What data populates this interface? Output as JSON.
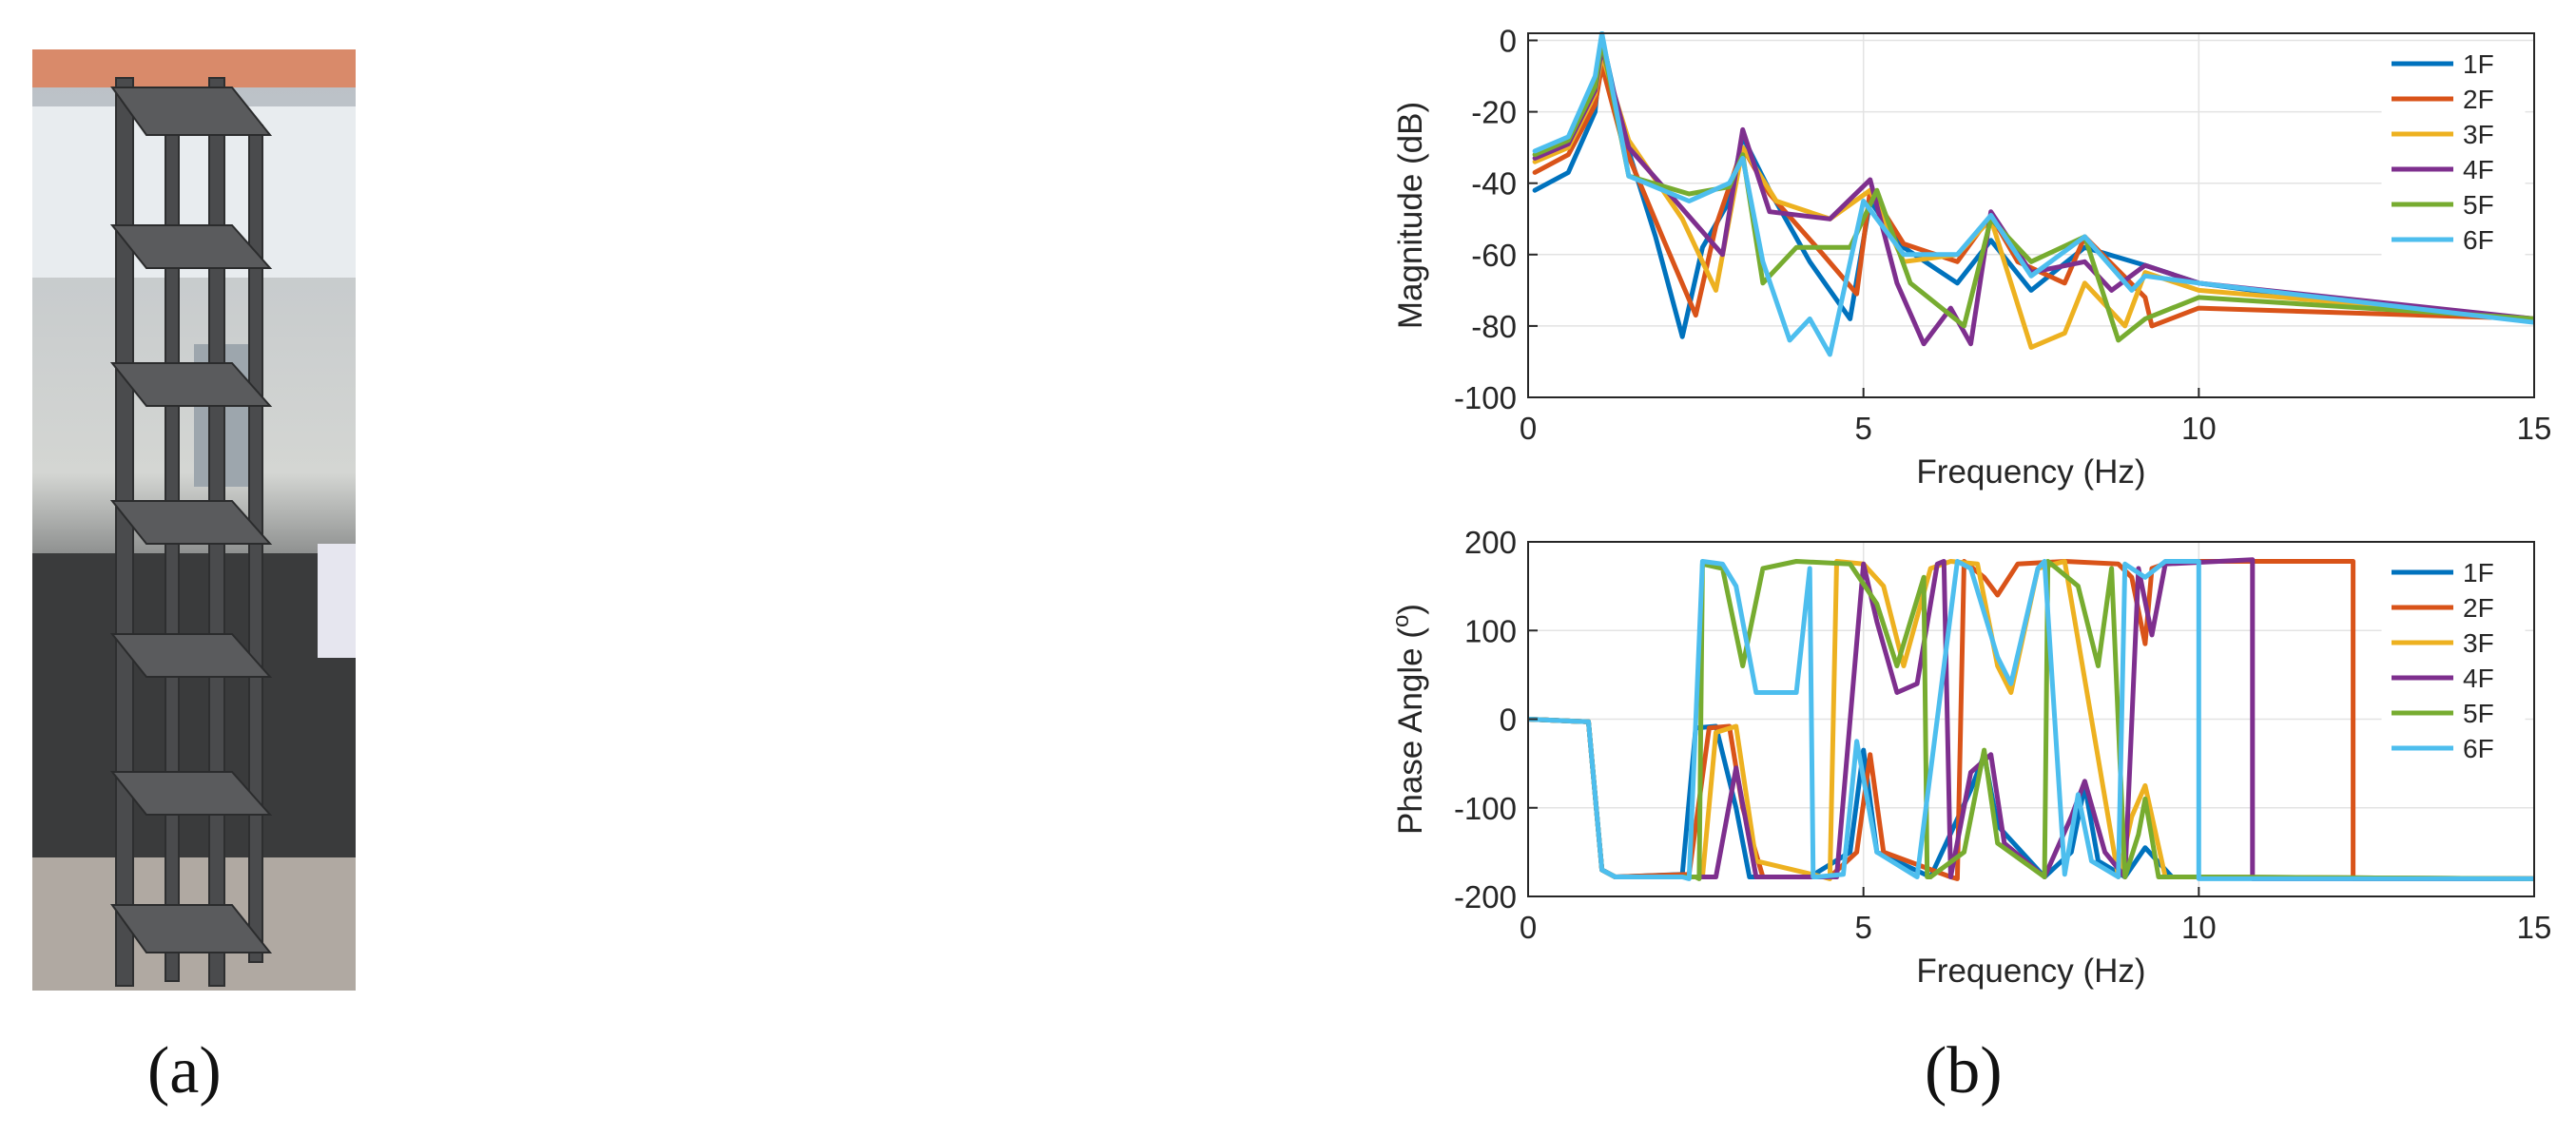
{
  "captions": {
    "a": "(a)",
    "b": "(b)"
  },
  "photo": {
    "subject": "multi-storey steel frame test structure",
    "storeys": 6
  },
  "colors": {
    "1F": "#0072BD",
    "2F": "#D95319",
    "3F": "#EDB120",
    "4F": "#7E2F8E",
    "5F": "#77AC30",
    "6F": "#4DBEEE"
  },
  "chart_data": [
    {
      "type": "line",
      "xlabel": "Frequency (Hz)",
      "ylabel": "Magnitude (dB)",
      "xlim": [
        0,
        15
      ],
      "ylim": [
        -100,
        2
      ],
      "xticks": [
        "0",
        "5",
        "10",
        "15"
      ],
      "yticks": [
        "0",
        "-20",
        "-40",
        "-60",
        "-80",
        "-100"
      ],
      "grid": true,
      "legend": "top-right",
      "series": [
        {
          "name": "1F",
          "x": [
            0.1,
            0.6,
            1.0,
            1.1,
            1.4,
            1.9,
            2.3,
            2.6,
            3.0,
            3.2,
            3.6,
            4.2,
            4.8,
            5.1,
            5.6,
            6.4,
            6.9,
            7.5,
            8.3,
            9.2,
            10.0,
            12.0,
            15.0
          ],
          "y": [
            -42,
            -37,
            -20,
            1,
            -25,
            -55,
            -83,
            -58,
            -45,
            -27,
            -42,
            -62,
            -78,
            -45,
            -58,
            -68,
            -56,
            -70,
            -58,
            -63,
            -68,
            -73,
            -78
          ]
        },
        {
          "name": "2F",
          "x": [
            0.1,
            0.6,
            1.0,
            1.1,
            1.4,
            2.0,
            2.5,
            2.8,
            3.2,
            3.6,
            4.4,
            4.9,
            5.1,
            5.6,
            6.4,
            6.9,
            7.3,
            8.0,
            8.3,
            9.2,
            9.3,
            10.0,
            15.0
          ],
          "y": [
            -37,
            -32,
            -18,
            -7,
            -28,
            -55,
            -77,
            -52,
            -30,
            -43,
            -60,
            -71,
            -42,
            -57,
            -62,
            -49,
            -62,
            -68,
            -55,
            -72,
            -80,
            -75,
            -78
          ]
        },
        {
          "name": "3F",
          "x": [
            0.1,
            0.6,
            1.0,
            1.1,
            1.5,
            2.3,
            2.8,
            3.2,
            3.7,
            4.5,
            5.1,
            5.6,
            6.4,
            6.9,
            7.5,
            8.0,
            8.3,
            8.9,
            9.2,
            10.0,
            15.0
          ],
          "y": [
            -34,
            -30,
            -15,
            -4,
            -28,
            -50,
            -70,
            -30,
            -45,
            -50,
            -42,
            -62,
            -60,
            -50,
            -86,
            -82,
            -68,
            -80,
            -65,
            -70,
            -78
          ]
        },
        {
          "name": "4F",
          "x": [
            0.1,
            0.6,
            1.0,
            1.1,
            1.5,
            2.2,
            2.9,
            3.2,
            3.6,
            4.5,
            5.1,
            5.5,
            5.9,
            6.3,
            6.6,
            6.9,
            7.5,
            8.3,
            8.7,
            9.2,
            10.0,
            15.0
          ],
          "y": [
            -33,
            -29,
            -14,
            -2,
            -30,
            -45,
            -60,
            -25,
            -48,
            -50,
            -39,
            -68,
            -85,
            -75,
            -85,
            -48,
            -65,
            -62,
            -70,
            -63,
            -68,
            -78
          ]
        },
        {
          "name": "5F",
          "x": [
            0.1,
            0.6,
            1.0,
            1.1,
            1.5,
            2.4,
            3.0,
            3.2,
            3.5,
            4.0,
            4.8,
            5.2,
            5.7,
            6.5,
            6.9,
            7.5,
            8.3,
            8.8,
            9.2,
            10.0,
            15.0
          ],
          "y": [
            -32,
            -28,
            -13,
            0,
            -38,
            -43,
            -41,
            -32,
            -68,
            -58,
            -58,
            -42,
            -68,
            -80,
            -50,
            -62,
            -55,
            -84,
            -78,
            -72,
            -78
          ]
        },
        {
          "name": "6F",
          "x": [
            0.1,
            0.6,
            1.0,
            1.1,
            1.5,
            2.4,
            3.0,
            3.2,
            3.5,
            3.9,
            4.2,
            4.5,
            5.0,
            5.6,
            6.4,
            6.9,
            7.5,
            8.3,
            9.0,
            9.2,
            10.0,
            15.0
          ],
          "y": [
            -31,
            -27,
            -10,
            2,
            -38,
            -45,
            -40,
            -33,
            -62,
            -84,
            -78,
            -88,
            -45,
            -60,
            -60,
            -49,
            -66,
            -55,
            -70,
            -66,
            -68,
            -79
          ]
        }
      ]
    },
    {
      "type": "line",
      "xlabel": "Frequency (Hz)",
      "ylabel": "Phase Angle (°)",
      "ylabel_text": "Phase Angle (",
      "ylabel_sup": "o",
      "ylabel_close": ")",
      "xlim": [
        0,
        15
      ],
      "ylim": [
        -200,
        200
      ],
      "xticks": [
        "0",
        "5",
        "10",
        "15"
      ],
      "yticks": [
        "200",
        "100",
        "0",
        "-100",
        "-200"
      ],
      "grid": true,
      "legend": "top-right",
      "series": [
        {
          "name": "1F",
          "x": [
            0,
            0.9,
            1.1,
            1.3,
            2.3,
            2.5,
            2.8,
            3.1,
            3.3,
            4.2,
            4.8,
            5.0,
            5.2,
            6.0,
            6.6,
            6.8,
            7.0,
            7.7,
            8.1,
            8.3,
            8.5,
            8.9,
            9.2,
            9.6,
            10.0,
            15.0
          ],
          "y": [
            0,
            -3,
            -170,
            -178,
            -175,
            -10,
            -8,
            -100,
            -178,
            -178,
            -150,
            -35,
            -150,
            -178,
            -80,
            -40,
            -120,
            -178,
            -150,
            -75,
            -160,
            -178,
            -145,
            -178,
            -178,
            -180
          ]
        },
        {
          "name": "2F",
          "x": [
            0,
            0.9,
            1.1,
            1.3,
            2.4,
            2.7,
            3.0,
            3.2,
            3.5,
            4.5,
            4.9,
            5.1,
            5.3,
            6.3,
            6.4,
            6.5,
            6.8,
            7.0,
            7.3,
            8.0,
            8.8,
            9.0,
            9.2,
            9.3,
            9.6,
            12.3,
            12.3,
            15.0
          ],
          "y": [
            0,
            -3,
            -170,
            -178,
            -175,
            -10,
            -8,
            -100,
            -178,
            -178,
            -150,
            -40,
            -150,
            -178,
            -180,
            178,
            160,
            140,
            175,
            178,
            175,
            160,
            85,
            170,
            178,
            178,
            -180,
            -180
          ]
        },
        {
          "name": "3F",
          "x": [
            0,
            0.9,
            1.1,
            1.3,
            2.6,
            2.8,
            3.1,
            3.4,
            4.4,
            4.5,
            4.6,
            5.0,
            5.3,
            5.6,
            6.0,
            6.3,
            6.7,
            7.0,
            7.2,
            7.6,
            8.0,
            8.8,
            9.0,
            9.2,
            9.5,
            10.0,
            15.0
          ],
          "y": [
            0,
            -3,
            -170,
            -178,
            -178,
            -15,
            -8,
            -160,
            -178,
            -180,
            178,
            175,
            150,
            60,
            170,
            178,
            175,
            60,
            30,
            170,
            178,
            -178,
            -110,
            -75,
            -178,
            -178,
            -180
          ]
        },
        {
          "name": "4F",
          "x": [
            0,
            0.9,
            1.1,
            1.3,
            2.8,
            3.1,
            3.4,
            4.6,
            5.0,
            5.2,
            5.5,
            5.8,
            6.1,
            6.2,
            6.3,
            6.6,
            6.9,
            7.1,
            7.7,
            8.1,
            8.3,
            8.6,
            8.9,
            9.1,
            9.3,
            9.5,
            10.8,
            10.8,
            15.0
          ],
          "y": [
            0,
            -3,
            -170,
            -178,
            -178,
            -55,
            -178,
            -178,
            175,
            110,
            30,
            40,
            175,
            178,
            -178,
            -60,
            -40,
            -140,
            -178,
            -110,
            -70,
            -150,
            -178,
            170,
            95,
            175,
            180,
            -180,
            -180
          ]
        },
        {
          "name": "5F",
          "x": [
            0,
            0.9,
            1.1,
            1.3,
            2.5,
            2.55,
            2.6,
            2.9,
            3.2,
            3.5,
            4.0,
            4.8,
            5.2,
            5.5,
            5.9,
            5.95,
            6.0,
            6.5,
            6.8,
            7.0,
            7.7,
            7.75,
            7.8,
            8.2,
            8.5,
            8.7,
            8.9,
            9.1,
            9.2,
            9.4,
            10.0,
            15.0
          ],
          "y": [
            0,
            -3,
            -170,
            -178,
            -178,
            -180,
            175,
            170,
            60,
            170,
            178,
            175,
            130,
            60,
            160,
            -178,
            -178,
            -150,
            -35,
            -140,
            -178,
            178,
            175,
            150,
            60,
            170,
            -178,
            -130,
            -90,
            -178,
            -178,
            -180
          ]
        },
        {
          "name": "6F",
          "x": [
            0,
            0.9,
            1.1,
            1.3,
            2.3,
            2.4,
            2.6,
            2.9,
            3.1,
            3.4,
            4.0,
            4.2,
            4.25,
            4.3,
            4.7,
            4.9,
            5.2,
            5.8,
            6.4,
            6.6,
            6.8,
            7.0,
            7.2,
            7.6,
            7.7,
            8.0,
            8.2,
            8.4,
            8.8,
            8.9,
            9.2,
            9.5,
            10.0,
            10.0,
            15.0
          ],
          "y": [
            0,
            -3,
            -170,
            -178,
            -178,
            -180,
            178,
            175,
            150,
            30,
            30,
            170,
            -178,
            -178,
            -175,
            -25,
            -150,
            -178,
            178,
            170,
            120,
            70,
            40,
            170,
            178,
            -175,
            -85,
            -160,
            -178,
            175,
            160,
            178,
            178,
            -180,
            -180
          ]
        }
      ]
    }
  ]
}
